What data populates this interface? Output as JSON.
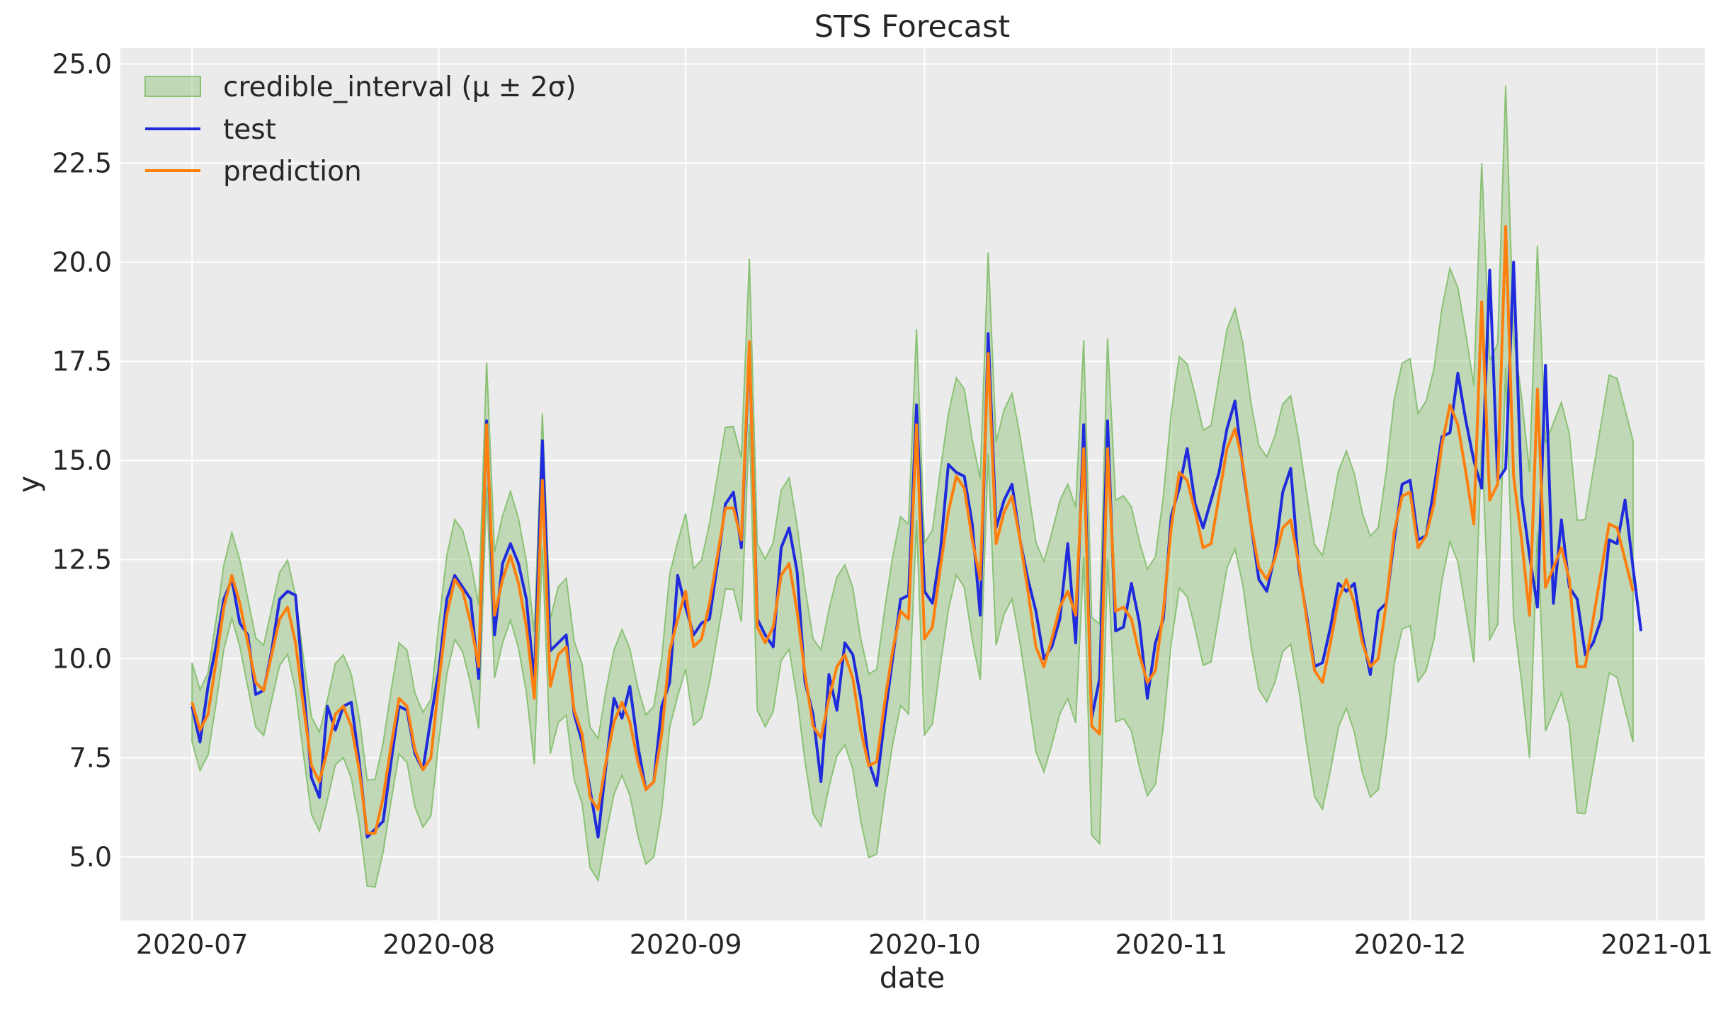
{
  "chart_data": {
    "type": "line",
    "title": "STS Forecast",
    "xlabel": "date",
    "ylabel": "y",
    "x_start": "2020-07-01",
    "ylim": [
      3.4,
      25.4
    ],
    "xlim": [
      "2020-06-22",
      "2021-01-07"
    ],
    "y_ticks": [
      "5.0",
      "7.5",
      "10.0",
      "12.5",
      "15.0",
      "17.5",
      "20.0",
      "22.5",
      "25.0"
    ],
    "x_ticks": [
      {
        "date": "2020-07-01",
        "label": "2020-07"
      },
      {
        "date": "2020-08-01",
        "label": "2020-08"
      },
      {
        "date": "2020-09-01",
        "label": "2020-09"
      },
      {
        "date": "2020-10-01",
        "label": "2020-10"
      },
      {
        "date": "2020-11-01",
        "label": "2020-11"
      },
      {
        "date": "2020-12-01",
        "label": "2020-12"
      },
      {
        "date": "2021-01-01",
        "label": "2021-01"
      }
    ],
    "grid": true,
    "legend_position": "top-left",
    "series": [
      {
        "name": "test",
        "color": "#1f2bdc",
        "values": [
          8.8,
          7.9,
          9.3,
          10.3,
          11.5,
          12.0,
          10.9,
          10.6,
          9.1,
          9.2,
          10.2,
          11.5,
          11.7,
          11.6,
          9.3,
          7.0,
          6.5,
          8.8,
          8.2,
          8.8,
          8.9,
          7.4,
          5.5,
          5.7,
          5.9,
          7.4,
          8.8,
          8.7,
          7.6,
          7.2,
          8.5,
          9.7,
          11.5,
          12.1,
          11.8,
          11.5,
          9.5,
          16.0,
          10.6,
          12.4,
          12.9,
          12.4,
          11.5,
          9.4,
          15.5,
          10.2,
          10.4,
          10.6,
          8.6,
          7.9,
          6.7,
          5.5,
          7.3,
          9.0,
          8.5,
          9.3,
          7.8,
          6.7,
          6.9,
          8.8,
          9.4,
          12.1,
          11.3,
          10.6,
          10.9,
          11.0,
          12.4,
          13.9,
          14.2,
          12.8,
          17.9,
          11.0,
          10.6,
          10.3,
          12.8,
          13.3,
          12.2,
          9.4,
          8.6,
          6.9,
          9.6,
          8.7,
          10.4,
          10.1,
          9.0,
          7.4,
          6.8,
          8.5,
          10.0,
          11.5,
          11.6,
          16.4,
          11.7,
          11.4,
          12.7,
          14.9,
          14.7,
          14.6,
          13.4,
          11.1,
          18.2,
          13.3,
          14.0,
          14.4,
          13.0,
          12.0,
          11.2,
          10.0,
          10.3,
          11.0,
          12.9,
          10.4,
          15.9,
          8.5,
          9.5,
          16.0,
          10.7,
          10.8,
          11.9,
          10.9,
          9.0,
          10.4,
          11.0,
          13.6,
          14.3,
          15.3,
          13.9,
          13.3,
          14.0,
          14.7,
          15.8,
          16.5,
          14.8,
          13.4,
          12.0,
          11.7,
          12.6,
          14.2,
          14.8,
          12.3,
          11.1,
          9.8,
          9.9,
          10.8,
          11.9,
          11.7,
          11.9,
          10.6,
          9.6,
          11.2,
          11.4,
          13.0,
          14.4,
          14.5,
          13.0,
          13.1,
          14.3,
          15.6,
          15.7,
          17.2,
          16.0,
          15.0,
          14.3,
          19.8,
          14.5,
          14.8,
          20.0,
          14.1,
          12.6,
          11.3,
          17.4,
          11.4,
          13.5,
          11.8,
          11.5,
          10.1,
          10.4,
          11.0,
          13.0,
          12.9,
          14.0,
          12.3,
          10.7
        ]
      },
      {
        "name": "prediction",
        "color": "#ff7f0e",
        "values": [
          8.9,
          8.2,
          8.6,
          9.9,
          11.3,
          12.1,
          11.4,
          10.4,
          9.4,
          9.2,
          10.1,
          11.0,
          11.3,
          10.4,
          8.8,
          7.3,
          6.9,
          7.7,
          8.6,
          8.8,
          8.3,
          7.2,
          5.6,
          5.6,
          6.5,
          7.8,
          9.0,
          8.8,
          7.7,
          7.2,
          7.5,
          9.4,
          11.1,
          12.0,
          11.7,
          10.9,
          9.8,
          15.9,
          11.1,
          12.0,
          12.6,
          11.9,
          10.8,
          9.0,
          14.5,
          9.3,
          10.1,
          10.3,
          8.7,
          8.1,
          6.5,
          6.2,
          7.4,
          8.4,
          8.9,
          8.4,
          7.4,
          6.7,
          6.9,
          8.1,
          10.2,
          11.0,
          11.7,
          10.3,
          10.5,
          11.4,
          12.6,
          13.8,
          13.8,
          13.0,
          18.0,
          10.8,
          10.4,
          10.8,
          12.1,
          12.4,
          11.2,
          9.6,
          8.3,
          8.0,
          9.0,
          9.8,
          10.1,
          9.5,
          8.2,
          7.3,
          7.4,
          8.9,
          10.2,
          11.2,
          11.0,
          15.9,
          10.5,
          10.8,
          12.3,
          13.7,
          14.6,
          14.3,
          13.0,
          12.0,
          17.7,
          12.9,
          13.7,
          14.1,
          13.0,
          11.7,
          10.3,
          9.8,
          10.5,
          11.3,
          11.7,
          11.1,
          15.3,
          8.3,
          8.1,
          15.3,
          11.2,
          11.3,
          11.0,
          10.1,
          9.4,
          9.7,
          11.2,
          13.3,
          14.7,
          14.5,
          13.7,
          12.8,
          12.9,
          14.1,
          15.3,
          15.8,
          14.9,
          13.4,
          12.3,
          12.0,
          12.5,
          13.3,
          13.5,
          12.4,
          11.0,
          9.7,
          9.4,
          10.4,
          11.5,
          12.0,
          11.4,
          10.4,
          9.8,
          10.0,
          11.4,
          13.2,
          14.1,
          14.2,
          12.8,
          13.1,
          13.9,
          15.4,
          16.4,
          15.9,
          14.7,
          13.4,
          19.0,
          14.0,
          14.4,
          20.9,
          14.6,
          13.0,
          11.1,
          16.8,
          11.8,
          12.3,
          12.8,
          12.0,
          9.8,
          9.8,
          11.0,
          12.2,
          13.4,
          13.3,
          12.5,
          11.7
        ]
      }
    ],
    "interval": {
      "name": "credible_interval ($\\mu \\pm 2\\sigma$)",
      "legend_label": "credible_interval (μ ± 2σ)",
      "color": "#8bc276",
      "half_width_start": 1.0,
      "half_width_end": 3.8
    }
  }
}
